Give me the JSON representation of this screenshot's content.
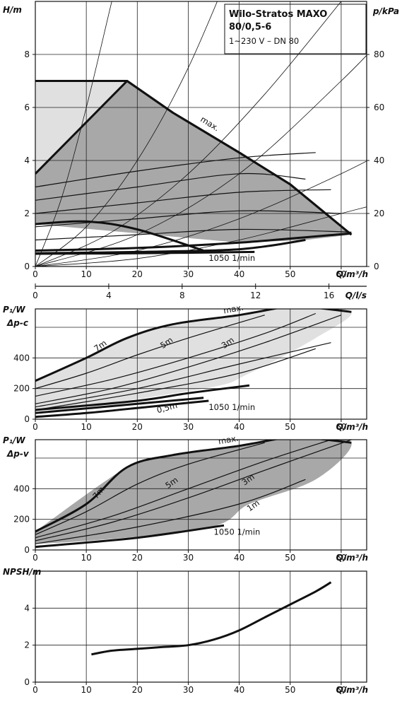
{
  "chart_data": [
    {
      "type": "line",
      "title": "Wilo-Stratos MAXO",
      "subtitle": "80/0,5-6",
      "note": "1~230 V – DN 80",
      "ylabel": "H/m",
      "ylabel_right": "p/kPa",
      "xlabel": "Q/m³/h",
      "xlabel_secondary": "Q/l/s",
      "xlim": [
        0,
        65
      ],
      "ylim": [
        0,
        10
      ],
      "ylim_right": [
        0,
        100
      ],
      "xticks": [
        "0",
        "10",
        "20",
        "30",
        "40",
        "50",
        "60"
      ],
      "yticks": [
        "0",
        "2",
        "4",
        "6",
        "8"
      ],
      "yticks_right": [
        "0",
        "20",
        "40",
        "60",
        "80"
      ],
      "xticks_secondary": [
        "0",
        "4",
        "8",
        "12",
        "16"
      ],
      "grid": true,
      "annotations": [
        "max.",
        "1050 1/min"
      ],
      "envelope_max": {
        "x": [
          0,
          18,
          27,
          40,
          50,
          62
        ],
        "y": [
          7,
          7,
          5.8,
          4.3,
          3.1,
          1.2
        ]
      },
      "regions": [
        {
          "name": "light",
          "x": [
            0,
            0,
            0,
            18
          ],
          "y": [
            3.5,
            7,
            7,
            7
          ]
        },
        {
          "name": "dark",
          "x": [
            0,
            18,
            27,
            40,
            50,
            62,
            53,
            40,
            0
          ],
          "y": [
            3.5,
            7,
            5.8,
            4.3,
            3.1,
            1.2,
            1.0,
            0.9,
            1.6
          ]
        }
      ],
      "series": [
        {
          "x": [
            0,
            18,
            27,
            40,
            50,
            62
          ],
          "y": [
            7,
            7,
            5.8,
            4.3,
            3.1,
            1.2
          ]
        },
        {
          "x": [
            0,
            18,
            27,
            40,
            50,
            62
          ],
          "y": [
            3.5,
            7,
            5.8,
            4.3,
            3.1,
            1.2
          ]
        },
        {
          "x": [
            0,
            20,
            40,
            55
          ],
          "y": [
            3.0,
            3.6,
            4.1,
            4.3
          ]
        },
        {
          "x": [
            0,
            20,
            40,
            53
          ],
          "y": [
            2.5,
            3.0,
            3.5,
            3.3
          ]
        },
        {
          "x": [
            0,
            20,
            40,
            58
          ],
          "y": [
            2.0,
            2.4,
            2.8,
            2.9
          ]
        },
        {
          "x": [
            0,
            20,
            40,
            60
          ],
          "y": [
            1.5,
            1.8,
            2.1,
            2.0
          ]
        },
        {
          "x": [
            0,
            20,
            40,
            62
          ],
          "y": [
            1.0,
            1.2,
            1.4,
            1.3
          ]
        },
        {
          "x": [
            0,
            10,
            20,
            33
          ],
          "y": [
            1.6,
            1.7,
            1.4,
            0.6
          ]
        },
        {
          "x": [
            0,
            20,
            40,
            62
          ],
          "y": [
            0.6,
            0.7,
            0.9,
            1.25
          ]
        },
        {
          "x": [
            0,
            20,
            40,
            53
          ],
          "y": [
            0.5,
            0.55,
            0.65,
            1.0
          ]
        },
        {
          "x": [
            0,
            20,
            43
          ],
          "y": [
            0.48,
            0.5,
            0.55
          ]
        }
      ],
      "system_curves": [
        {
          "x": [
            0,
            5,
            10,
            15,
            20
          ],
          "y": [
            0,
            2.5,
            6,
            10,
            14
          ]
        },
        {
          "x": [
            0,
            10,
            20,
            30,
            40
          ],
          "y": [
            0,
            1.5,
            4,
            7.5,
            12
          ]
        },
        {
          "x": [
            0,
            15,
            30,
            45,
            60
          ],
          "y": [
            0,
            1.3,
            3.5,
            6.5,
            10
          ]
        },
        {
          "x": [
            0,
            20,
            40,
            60,
            70
          ],
          "y": [
            0,
            1.2,
            3.5,
            7,
            9
          ]
        },
        {
          "x": [
            0,
            20,
            40,
            60,
            70
          ],
          "y": [
            0,
            0.6,
            1.8,
            3.5,
            4.5
          ]
        },
        {
          "x": [
            0,
            20,
            40,
            60,
            70
          ],
          "y": [
            0,
            0.3,
            1.0,
            2.0,
            2.5
          ]
        }
      ]
    },
    {
      "type": "line",
      "ylabel": "P₁/W",
      "sublabel": "Δp-c",
      "xlabel": "Q/m³/h",
      "xlim": [
        0,
        65
      ],
      "ylim": [
        0,
        720
      ],
      "xticks": [
        "0",
        "10",
        "20",
        "30",
        "40",
        "50",
        "60"
      ],
      "yticks": [
        "0",
        "200",
        "400"
      ],
      "grid": true,
      "annotations": [
        "max.",
        "7m",
        "5m",
        "3m",
        "0,5m",
        "1050 1/min"
      ],
      "region": {
        "x": [
          0,
          18,
          27,
          40,
          50,
          52,
          62,
          55,
          42,
          33,
          0
        ],
        "y": [
          250,
          530,
          620,
          680,
          740,
          740,
          700,
          530,
          300,
          200,
          60
        ]
      },
      "series": [
        {
          "name": "max.",
          "x": [
            0,
            10,
            18,
            27,
            40,
            50,
            52,
            62
          ],
          "y": [
            250,
            400,
            530,
            620,
            680,
            740,
            740,
            700
          ]
        },
        {
          "x": [
            0,
            10,
            20,
            30,
            45
          ],
          "y": [
            200,
            300,
            420,
            530,
            680
          ]
        },
        {
          "x": [
            0,
            15,
            30,
            45,
            55
          ],
          "y": [
            150,
            260,
            400,
            560,
            690
          ]
        },
        {
          "x": [
            0,
            15,
            30,
            45,
            60
          ],
          "y": [
            100,
            200,
            340,
            500,
            680
          ]
        },
        {
          "x": [
            0,
            20,
            40,
            58
          ],
          "y": [
            80,
            200,
            360,
            500
          ]
        },
        {
          "x": [
            0,
            20,
            40,
            55
          ],
          "y": [
            60,
            170,
            300,
            460
          ]
        },
        {
          "x": [
            0,
            20,
            33
          ],
          "y": [
            40,
            100,
            140
          ]
        },
        {
          "x": [
            0,
            20,
            30,
            42
          ],
          "y": [
            60,
            120,
            170,
            220
          ]
        },
        {
          "x": [
            0,
            10,
            22,
            34
          ],
          "y": [
            15,
            40,
            80,
            120
          ]
        }
      ]
    },
    {
      "type": "line",
      "ylabel": "P₁/W",
      "sublabel": "Δp-v",
      "xlabel": "Q/m³/h",
      "xlim": [
        0,
        65
      ],
      "ylim": [
        0,
        720
      ],
      "xticks": [
        "0",
        "10",
        "20",
        "30",
        "40",
        "50",
        "60"
      ],
      "yticks": [
        "0",
        "200",
        "400"
      ],
      "grid": true,
      "annotations": [
        "max.",
        "7m",
        "5m",
        "3m",
        "1m",
        "1050 1/min"
      ],
      "region": {
        "x": [
          0,
          18,
          27,
          40,
          50,
          52,
          62,
          55,
          42,
          33,
          0
        ],
        "y": [
          120,
          540,
          620,
          680,
          740,
          740,
          700,
          460,
          300,
          140,
          40
        ]
      },
      "series": [
        {
          "name": "max.",
          "x": [
            0,
            10,
            18,
            27,
            40,
            50,
            52,
            62
          ],
          "y": [
            120,
            300,
            540,
            620,
            680,
            740,
            740,
            700
          ]
        },
        {
          "x": [
            0,
            10,
            20,
            30,
            45
          ],
          "y": [
            100,
            250,
            430,
            560,
            700
          ]
        },
        {
          "x": [
            0,
            15,
            30,
            45,
            58
          ],
          "y": [
            80,
            220,
            400,
            580,
            720
          ]
        },
        {
          "x": [
            0,
            15,
            30,
            45,
            62
          ],
          "y": [
            60,
            180,
            340,
            520,
            720
          ]
        },
        {
          "x": [
            0,
            20,
            40,
            53
          ],
          "y": [
            40,
            150,
            300,
            460
          ]
        },
        {
          "x": [
            0,
            20,
            37
          ],
          "y": [
            20,
            80,
            160
          ]
        }
      ]
    },
    {
      "type": "line",
      "ylabel": "NPSH/m",
      "xlabel": "Q/m³/h",
      "xlim": [
        0,
        65
      ],
      "ylim": [
        0,
        6
      ],
      "xticks": [
        "0",
        "10",
        "20",
        "30",
        "40",
        "50",
        "60"
      ],
      "yticks": [
        "0",
        "2",
        "4"
      ],
      "grid": true,
      "series": [
        {
          "x": [
            11,
            15,
            20,
            25,
            30,
            35,
            40,
            45,
            50,
            55,
            58
          ],
          "y": [
            1.5,
            1.7,
            1.8,
            1.9,
            2.0,
            2.3,
            2.8,
            3.5,
            4.2,
            4.9,
            5.4
          ]
        }
      ]
    }
  ],
  "colors": {
    "dark_fill": "#a8a8a8",
    "light_fill": "#e0e0e0",
    "line": "#111111",
    "grid": "#222222"
  }
}
